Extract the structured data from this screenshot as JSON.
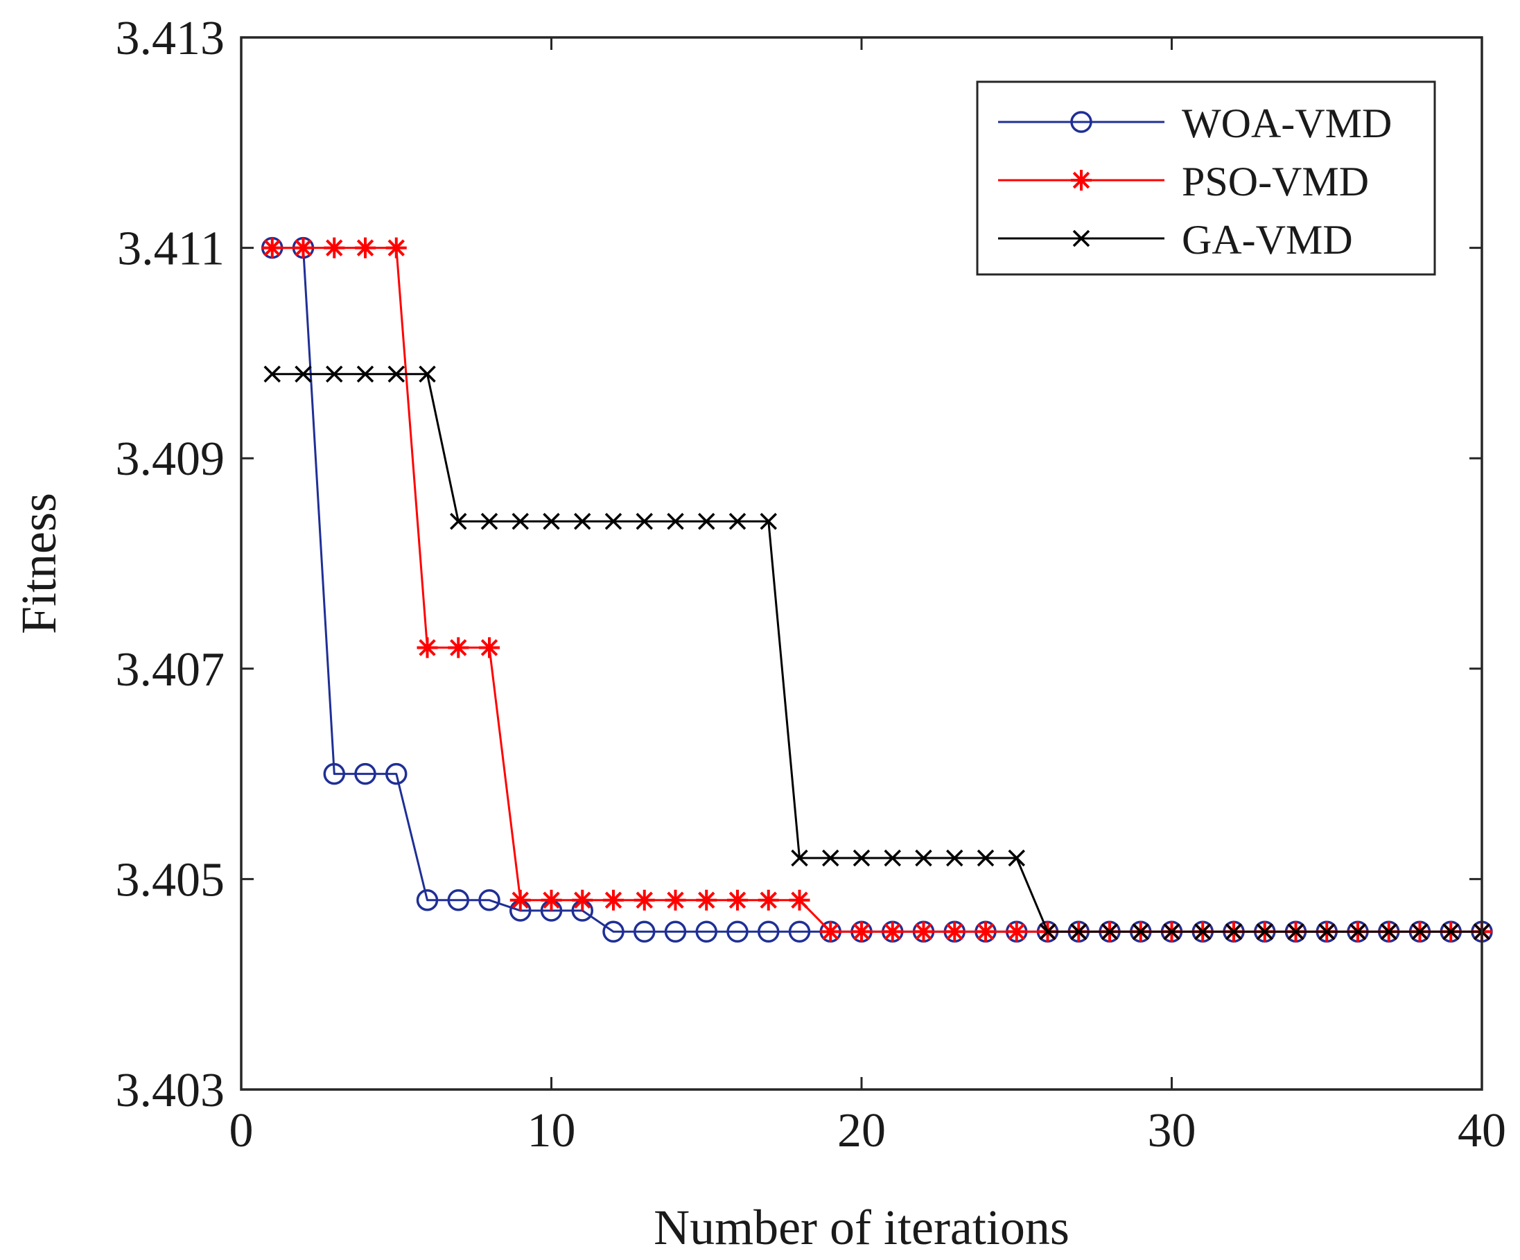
{
  "chart_data": {
    "type": "line",
    "title": "",
    "xlabel": "Number of iterations",
    "ylabel": "Fitness",
    "xlim": [
      0,
      40
    ],
    "ylim": [
      3.403,
      3.413
    ],
    "xticks": [
      0,
      10,
      20,
      30,
      40
    ],
    "yticks": [
      3.403,
      3.405,
      3.407,
      3.409,
      3.411,
      3.413
    ],
    "xtick_labels": [
      "0",
      "10",
      "20",
      "30",
      "40"
    ],
    "ytick_labels": [
      "3.403",
      "3.405",
      "3.407",
      "3.409",
      "3.411",
      "3.413"
    ],
    "grid": false,
    "legend_position": "top-right",
    "x": [
      1,
      2,
      3,
      4,
      5,
      6,
      7,
      8,
      9,
      10,
      11,
      12,
      13,
      14,
      15,
      16,
      17,
      18,
      19,
      20,
      21,
      22,
      23,
      24,
      25,
      26,
      27,
      28,
      29,
      30,
      31,
      32,
      33,
      34,
      35,
      36,
      37,
      38,
      39,
      40
    ],
    "series": [
      {
        "name": "WOA-VMD",
        "color": "#1f2f96",
        "marker": "circle",
        "values": [
          3.411,
          3.411,
          3.406,
          3.406,
          3.406,
          3.4048,
          3.4048,
          3.4048,
          3.4047,
          3.4047,
          3.4047,
          3.4045,
          3.4045,
          3.4045,
          3.4045,
          3.4045,
          3.4045,
          3.4045,
          3.4045,
          3.4045,
          3.4045,
          3.4045,
          3.4045,
          3.4045,
          3.4045,
          3.4045,
          3.4045,
          3.4045,
          3.4045,
          3.4045,
          3.4045,
          3.4045,
          3.4045,
          3.4045,
          3.4045,
          3.4045,
          3.4045,
          3.4045,
          3.4045,
          3.4045
        ]
      },
      {
        "name": "PSO-VMD",
        "color": "#ff0000",
        "marker": "asterisk",
        "values": [
          3.411,
          3.411,
          3.411,
          3.411,
          3.411,
          3.4072,
          3.4072,
          3.4072,
          3.4048,
          3.4048,
          3.4048,
          3.4048,
          3.4048,
          3.4048,
          3.4048,
          3.4048,
          3.4048,
          3.4048,
          3.4045,
          3.4045,
          3.4045,
          3.4045,
          3.4045,
          3.4045,
          3.4045,
          3.4045,
          3.4045,
          3.4045,
          3.4045,
          3.4045,
          3.4045,
          3.4045,
          3.4045,
          3.4045,
          3.4045,
          3.4045,
          3.4045,
          3.4045,
          3.4045,
          3.4045
        ]
      },
      {
        "name": "GA-VMD",
        "color": "#000000",
        "marker": "x",
        "values": [
          3.4098,
          3.4098,
          3.4098,
          3.4098,
          3.4098,
          3.4098,
          3.4084,
          3.4084,
          3.4084,
          3.4084,
          3.4084,
          3.4084,
          3.4084,
          3.4084,
          3.4084,
          3.4084,
          3.4084,
          3.4052,
          3.4052,
          3.4052,
          3.4052,
          3.4052,
          3.4052,
          3.4052,
          3.4052,
          3.4045,
          3.4045,
          3.4045,
          3.4045,
          3.4045,
          3.4045,
          3.4045,
          3.4045,
          3.4045,
          3.4045,
          3.4045,
          3.4045,
          3.4045,
          3.4045,
          3.4045
        ]
      }
    ]
  }
}
